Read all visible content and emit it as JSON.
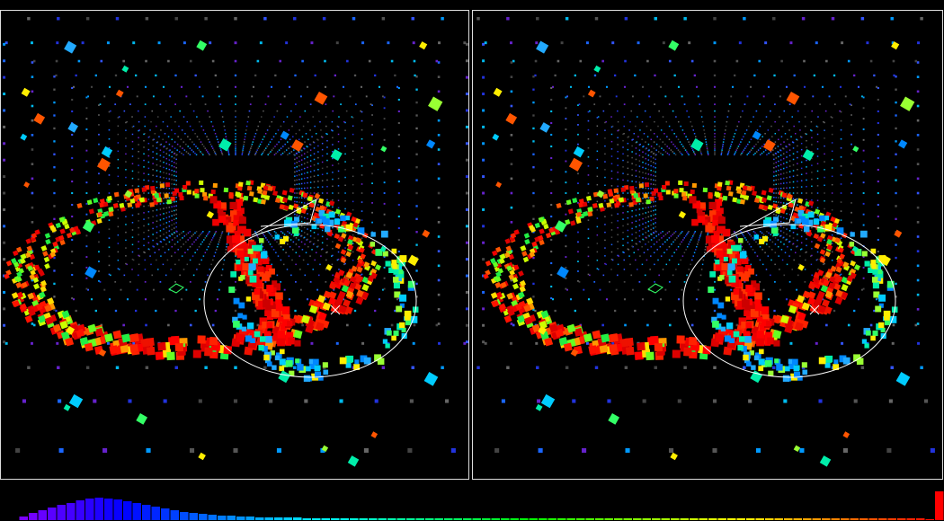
{
  "histogram": {
    "type": "bar",
    "values": [
      0,
      0,
      4,
      8,
      11,
      14,
      17,
      19,
      22,
      24,
      25,
      24,
      23,
      21,
      19,
      17,
      15,
      13,
      11,
      9,
      8,
      7,
      6,
      5,
      5,
      4,
      4,
      3,
      3,
      3,
      3,
      3,
      2,
      2,
      2,
      2,
      2,
      2,
      2,
      2,
      2,
      2,
      2,
      2,
      2,
      2,
      2,
      2,
      2,
      2,
      2,
      2,
      2,
      2,
      2,
      2,
      2,
      2,
      2,
      2,
      2,
      2,
      2,
      2,
      2,
      2,
      2,
      2,
      2,
      2,
      2,
      2,
      2,
      2,
      2,
      2,
      2,
      2,
      2,
      2,
      2,
      2,
      2,
      2,
      2,
      2,
      2,
      2,
      2,
      2,
      2,
      2,
      2,
      2,
      2,
      2,
      2,
      2,
      1,
      32
    ]
  }
}
